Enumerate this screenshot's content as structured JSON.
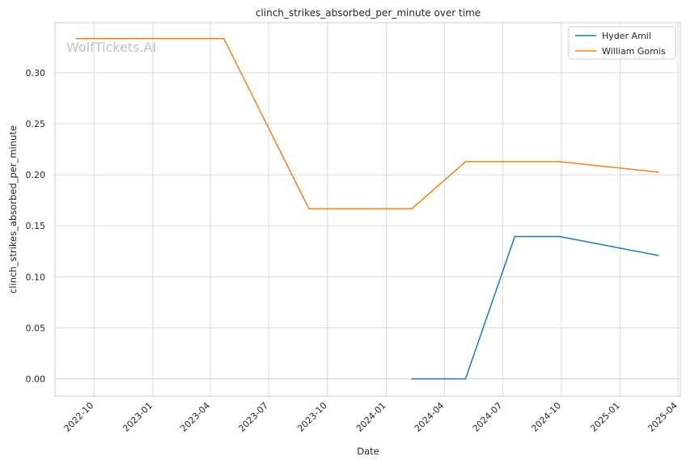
{
  "chart_data": {
    "type": "line",
    "title": "clinch_strikes_absorbed_per_minute over time",
    "xlabel": "Date",
    "ylabel": "clinch_strikes_absorbed_per_minute",
    "watermark": "WolfTickets.AI",
    "x_ticks": [
      "2022-10",
      "2023-01",
      "2023-04",
      "2023-07",
      "2023-10",
      "2024-01",
      "2024-04",
      "2024-07",
      "2024-10",
      "2025-01",
      "2025-04"
    ],
    "y_ticks": [
      "0.00",
      "0.05",
      "0.10",
      "0.15",
      "0.20",
      "0.25",
      "0.30"
    ],
    "xlim": [
      "2022-08-01",
      "2025-04-05"
    ],
    "ylim": [
      -0.017,
      0.349
    ],
    "grid": true,
    "legend_position": "top-right",
    "series": [
      {
        "name": "Hyder Amil",
        "color": "#1f77b4",
        "points": [
          {
            "x": "2024-02-10",
            "y": 0.0
          },
          {
            "x": "2024-05-04",
            "y": 0.0
          },
          {
            "x": "2024-07-20",
            "y": 0.1395
          },
          {
            "x": "2024-09-28",
            "y": 0.1395
          },
          {
            "x": "2025-03-01",
            "y": 0.121
          }
        ]
      },
      {
        "name": "William Gomis",
        "color": "#ff7f0e",
        "points": [
          {
            "x": "2022-09-03",
            "y": 0.3333
          },
          {
            "x": "2023-04-22",
            "y": 0.3333
          },
          {
            "x": "2023-09-02",
            "y": 0.1667
          },
          {
            "x": "2024-02-10",
            "y": 0.1667
          },
          {
            "x": "2024-05-04",
            "y": 0.2128
          },
          {
            "x": "2024-09-28",
            "y": 0.2128
          },
          {
            "x": "2025-03-01",
            "y": 0.2025
          }
        ]
      }
    ]
  }
}
